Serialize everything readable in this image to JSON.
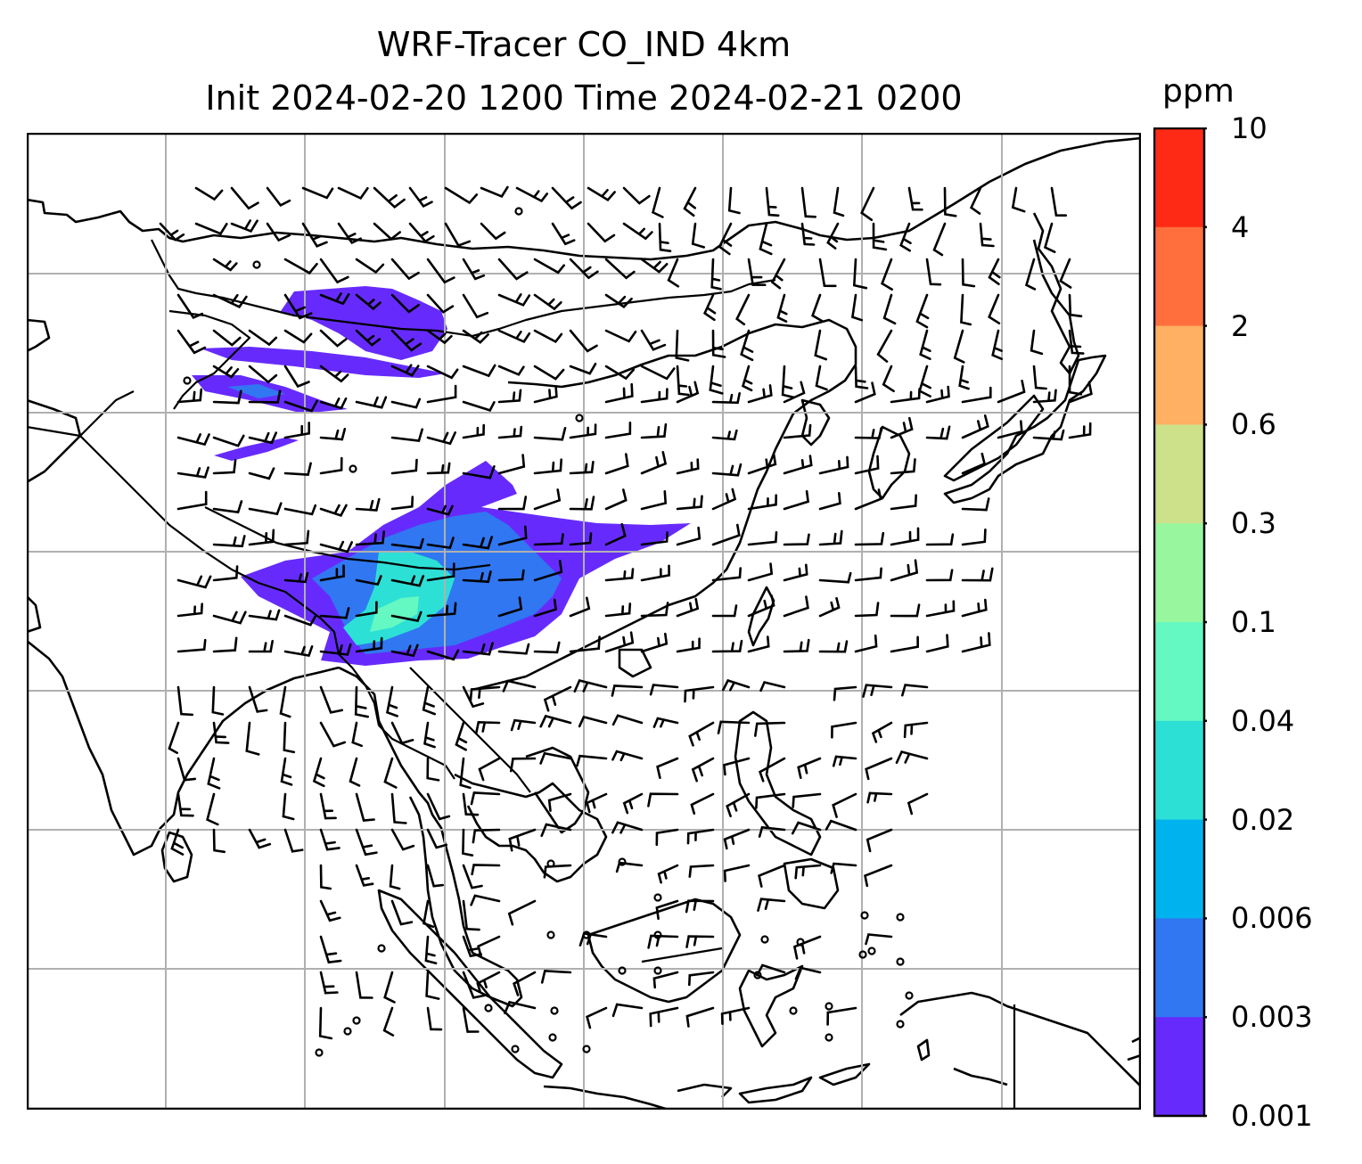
{
  "title": {
    "line1": "WRF-Tracer CO_IND 4km",
    "line2": "Init 2024-02-20 1200 Time 2024-02-21 0200"
  },
  "colorbar": {
    "unit": "ppm",
    "ticks": [
      "10",
      "4",
      "2",
      "0.6",
      "0.3",
      "0.1",
      "0.04",
      "0.02",
      "0.006",
      "0.003",
      "0.001"
    ],
    "colors": [
      "#ff2a16",
      "#ff6f3d",
      "#ffb062",
      "#cde08a",
      "#98f79e",
      "#64f8c2",
      "#2de0d6",
      "#00b2ee",
      "#3177f1",
      "#662bfc"
    ]
  },
  "map": {
    "colors": {
      "coast": "#000000",
      "grid": "#b0b0b0",
      "plume_level1": "#662bfc",
      "plume_level2": "#3177f1",
      "plume_level3": "#2de0d6",
      "plume_level4": "#64f8c2"
    },
    "wind_barbs": "wind-barb-icon",
    "calm_markers": "calm-circle-icon"
  }
}
